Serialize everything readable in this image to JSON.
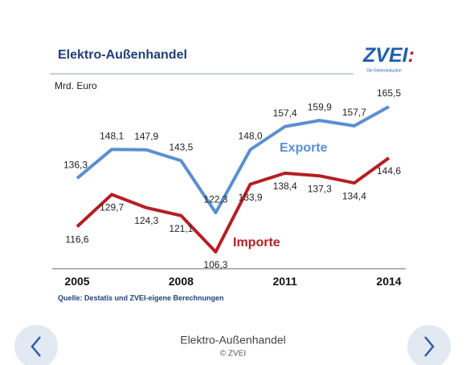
{
  "chart_data": {
    "type": "line",
    "title": "Elektro-Außenhandel",
    "y_label": "Mrd. Euro",
    "logo": "ZVEI",
    "logo_mark": ":",
    "logo_subtitle": "Die Elektroindustrie",
    "source": "Quelle: Destatis und ZVEI-eigene Berechnungen",
    "categories": [
      "2005",
      null,
      null,
      "2008",
      null,
      null,
      "2011",
      null,
      null,
      "2014"
    ],
    "series": [
      {
        "name": "Exporte",
        "color": "#5b8fd0",
        "values": [
          136.3,
          148.1,
          147.9,
          143.5,
          122.3,
          148.0,
          157.4,
          159.9,
          157.7,
          165.5
        ],
        "value_labels": [
          "136,3",
          "148,1",
          "147,9",
          "143,5",
          "122,3",
          "148,0",
          "157,4",
          "159,9",
          "157,7",
          "165,5"
        ]
      },
      {
        "name": "Importe",
        "color": "#b51f24",
        "values": [
          116.6,
          129.7,
          124.3,
          121.1,
          106.3,
          133.9,
          138.4,
          137.3,
          134.4,
          144.6
        ],
        "value_labels": [
          "116,6",
          "129,7",
          "124,3",
          "121,1",
          "106,3",
          "133,9",
          "138,4",
          "137,3",
          "134,4",
          "144,6"
        ]
      }
    ]
  },
  "caption": "Elektro-Außenhandel",
  "credit": "© ZVEI"
}
